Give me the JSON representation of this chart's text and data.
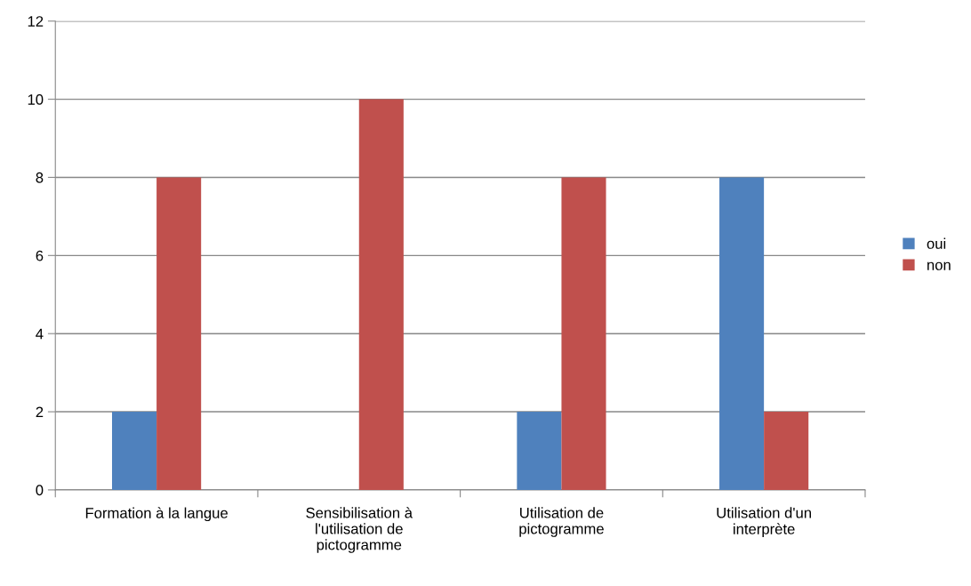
{
  "chart_data": {
    "type": "bar",
    "categories": [
      "Formation à la langue",
      "Sensibilisation à\nl'utilisation de\npictogramme",
      "Utilisation de\npictogramme",
      "Utilisation d'un\ninterprète"
    ],
    "series": [
      {
        "name": "oui",
        "color": "#4f81bd",
        "values": [
          2,
          0,
          2,
          8
        ]
      },
      {
        "name": "non",
        "color": "#c0504d",
        "values": [
          8,
          10,
          8,
          2
        ]
      }
    ],
    "ylim": [
      0,
      12
    ],
    "yticks": [
      0,
      2,
      4,
      6,
      8,
      10,
      12
    ],
    "grid": "y",
    "legend": "right"
  }
}
